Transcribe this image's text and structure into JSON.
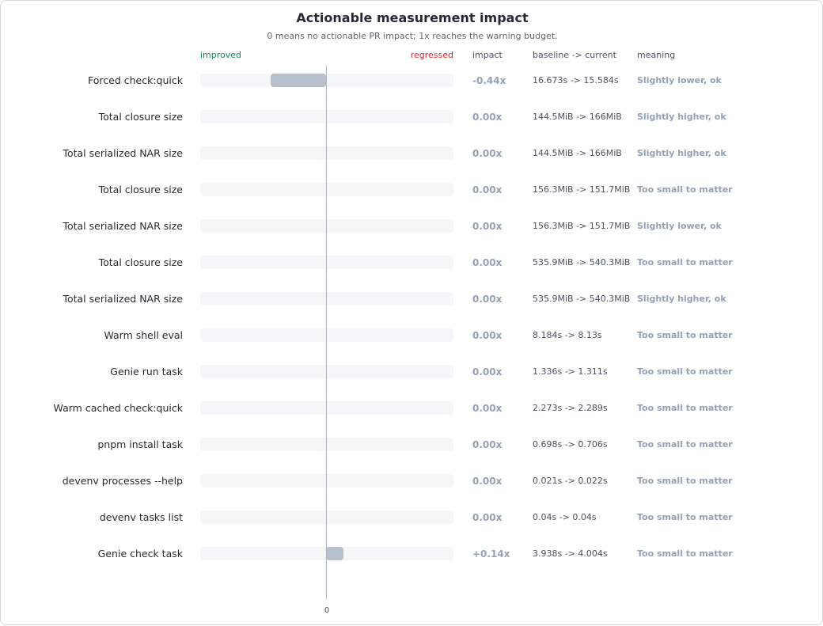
{
  "colors": {
    "improved": "#0f8a5f",
    "regressed": "#d62b2b",
    "bar": "#b7c1ce",
    "track": "#f5f6f8",
    "muted": "#93a1b4"
  },
  "chart_data": {
    "type": "bar",
    "orientation": "horizontal",
    "title": "Actionable measurement impact",
    "subtitle": "0 means no actionable PR impact; 1x reaches the warning budget.",
    "xlim": [
      -1,
      1
    ],
    "x_ticks": [
      "0"
    ],
    "headers": {
      "improved": "improved",
      "regressed": "regressed",
      "impact": "impact",
      "change": "baseline -> current",
      "meaning": "meaning"
    },
    "rows": [
      {
        "label": "Forced check:quick",
        "value": -0.44,
        "impact": "-0.44x",
        "change": "16.673s -> 15.584s",
        "meaning": "Slightly lower, ok"
      },
      {
        "label": "Total closure size",
        "value": 0.0,
        "impact": "0.00x",
        "change": "144.5MiB -> 166MiB",
        "meaning": "Slightly higher, ok"
      },
      {
        "label": "Total serialized NAR size",
        "value": 0.0,
        "impact": "0.00x",
        "change": "144.5MiB -> 166MiB",
        "meaning": "Slightly higher, ok"
      },
      {
        "label": "Total closure size",
        "value": 0.0,
        "impact": "0.00x",
        "change": "156.3MiB -> 151.7MiB",
        "meaning": "Too small to matter"
      },
      {
        "label": "Total serialized NAR size",
        "value": 0.0,
        "impact": "0.00x",
        "change": "156.3MiB -> 151.7MiB",
        "meaning": "Slightly lower, ok"
      },
      {
        "label": "Total closure size",
        "value": 0.0,
        "impact": "0.00x",
        "change": "535.9MiB -> 540.3MiB",
        "meaning": "Too small to matter"
      },
      {
        "label": "Total serialized NAR size",
        "value": 0.0,
        "impact": "0.00x",
        "change": "535.9MiB -> 540.3MiB",
        "meaning": "Slightly higher, ok"
      },
      {
        "label": "Warm shell eval",
        "value": 0.0,
        "impact": "0.00x",
        "change": "8.184s -> 8.13s",
        "meaning": "Too small to matter"
      },
      {
        "label": "Genie run task",
        "value": 0.0,
        "impact": "0.00x",
        "change": "1.336s -> 1.311s",
        "meaning": "Too small to matter"
      },
      {
        "label": "Warm cached check:quick",
        "value": 0.0,
        "impact": "0.00x",
        "change": "2.273s -> 2.289s",
        "meaning": "Too small to matter"
      },
      {
        "label": "pnpm install task",
        "value": 0.0,
        "impact": "0.00x",
        "change": "0.698s -> 0.706s",
        "meaning": "Too small to matter"
      },
      {
        "label": "devenv processes --help",
        "value": 0.0,
        "impact": "0.00x",
        "change": "0.021s -> 0.022s",
        "meaning": "Too small to matter"
      },
      {
        "label": "devenv tasks list",
        "value": 0.0,
        "impact": "0.00x",
        "change": "0.04s -> 0.04s",
        "meaning": "Too small to matter"
      },
      {
        "label": "Genie check task",
        "value": 0.14,
        "impact": "+0.14x",
        "change": "3.938s -> 4.004s",
        "meaning": "Too small to matter"
      }
    ]
  }
}
